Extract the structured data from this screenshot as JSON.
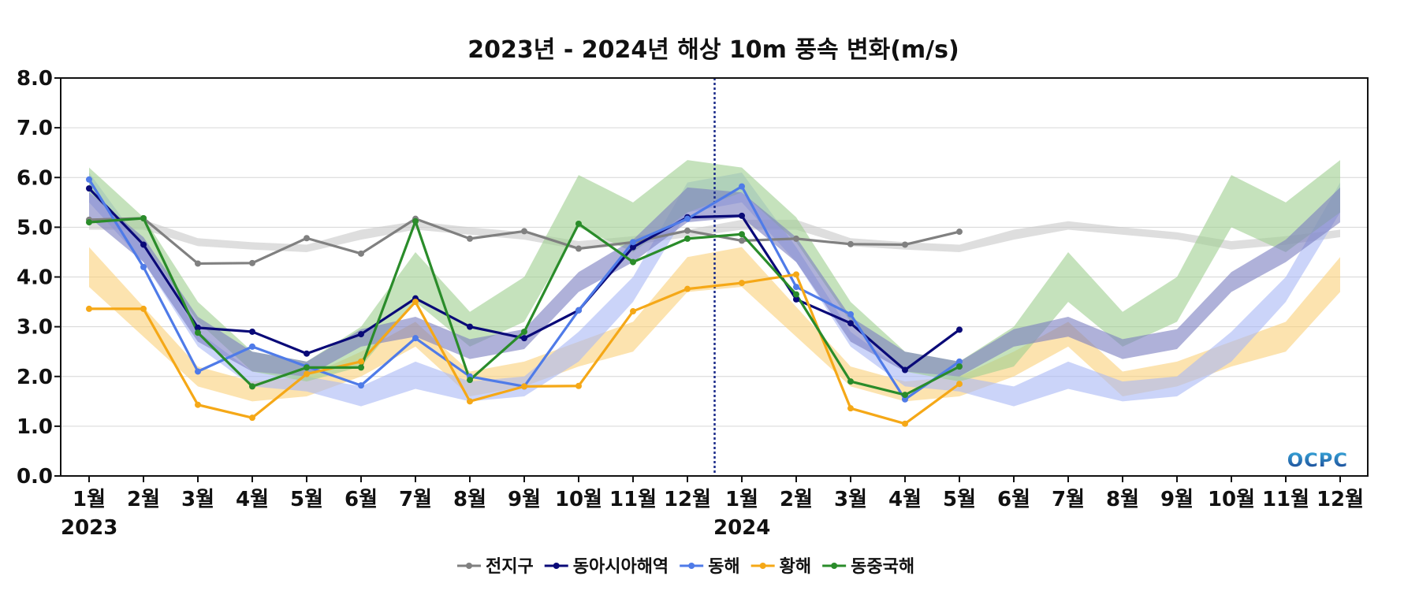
{
  "chart_data": {
    "type": "line",
    "title": "2023년 - 2024년 해상 10m 풍속 변화(m/s)",
    "xlabel": "",
    "ylabel": "",
    "ylim": [
      0,
      8
    ],
    "yticks": [
      "0.0",
      "1.0",
      "2.0",
      "3.0",
      "4.0",
      "5.0",
      "6.0",
      "7.0",
      "8.0"
    ],
    "categories": [
      "1월",
      "2월",
      "3월",
      "4월",
      "5월",
      "6월",
      "7월",
      "8월",
      "9월",
      "10월",
      "11월",
      "12월",
      "1월",
      "2월",
      "3월",
      "4월",
      "5월",
      "6월",
      "7월",
      "8월",
      "9월",
      "10월",
      "11월",
      "12월"
    ],
    "year_labels": [
      {
        "index": 0,
        "label": "2023"
      },
      {
        "index": 12,
        "label": "2024"
      }
    ],
    "divider_between": [
      11,
      12
    ],
    "grid": "horizontal",
    "legend_position": "bottom",
    "bands": [
      {
        "name": "전지구",
        "color": "#c8c8c8",
        "lower": [
          4.95,
          4.95,
          4.62,
          4.55,
          4.5,
          4.75,
          4.95,
          4.85,
          4.75,
          4.55,
          4.65,
          4.8,
          4.95,
          4.95,
          4.62,
          4.55,
          4.5,
          4.75,
          4.95,
          4.85,
          4.75,
          4.55,
          4.65,
          4.8
        ],
        "upper": [
          5.15,
          5.15,
          4.78,
          4.7,
          4.65,
          4.95,
          5.12,
          5.0,
          4.9,
          4.72,
          4.82,
          4.95,
          5.15,
          5.15,
          4.78,
          4.7,
          4.65,
          4.95,
          5.12,
          5.0,
          4.9,
          4.72,
          4.82,
          4.95
        ]
      },
      {
        "name": "황해",
        "color": "#fad17a",
        "lower": [
          3.8,
          2.8,
          1.8,
          1.5,
          1.6,
          2.0,
          2.6,
          1.6,
          1.8,
          2.2,
          2.5,
          3.7,
          3.8,
          2.8,
          1.8,
          1.5,
          1.6,
          2.0,
          2.6,
          1.6,
          1.8,
          2.2,
          2.5,
          3.7
        ],
        "upper": [
          4.6,
          3.4,
          2.2,
          1.9,
          2.0,
          2.5,
          3.1,
          2.1,
          2.3,
          2.7,
          3.1,
          4.4,
          4.6,
          3.4,
          2.2,
          1.9,
          2.0,
          2.5,
          3.1,
          2.1,
          2.3,
          2.7,
          3.1,
          4.4
        ]
      },
      {
        "name": "동해",
        "color": "#a8b8f5",
        "lower": [
          5.5,
          4.3,
          2.6,
          1.8,
          1.7,
          1.4,
          1.75,
          1.5,
          1.6,
          2.3,
          3.5,
          5.3,
          5.5,
          4.3,
          2.6,
          1.8,
          1.7,
          1.4,
          1.75,
          1.5,
          1.6,
          2.3,
          3.5,
          5.3
        ],
        "upper": [
          6.1,
          4.6,
          2.9,
          2.1,
          2.0,
          1.8,
          2.3,
          1.9,
          2.0,
          2.9,
          4.0,
          5.9,
          6.1,
          4.6,
          2.9,
          2.1,
          2.0,
          1.8,
          2.3,
          1.9,
          2.0,
          2.9,
          4.0,
          5.9
        ]
      },
      {
        "name": "동중국해",
        "color": "#9fcf8f",
        "lower": [
          5.7,
          4.7,
          3.1,
          2.1,
          1.9,
          2.2,
          3.5,
          2.6,
          3.1,
          5.0,
          4.5,
          5.3,
          5.7,
          4.7,
          3.1,
          2.1,
          1.9,
          2.2,
          3.5,
          2.6,
          3.1,
          5.0,
          4.5,
          5.3
        ],
        "upper": [
          6.2,
          5.2,
          3.5,
          2.5,
          2.3,
          3.0,
          4.5,
          3.3,
          4.0,
          6.05,
          5.5,
          6.35,
          6.2,
          5.2,
          3.5,
          2.5,
          2.3,
          3.0,
          4.5,
          3.3,
          4.0,
          6.05,
          5.5,
          6.35
        ]
      },
      {
        "name": "동아시아해역",
        "color": "#7a7dbf",
        "lower": [
          5.2,
          4.3,
          2.7,
          2.1,
          2.0,
          2.6,
          2.8,
          2.35,
          2.55,
          3.7,
          4.3,
          5.1,
          5.2,
          4.3,
          2.7,
          2.1,
          2.0,
          2.6,
          2.8,
          2.35,
          2.55,
          3.7,
          4.3,
          5.1
        ],
        "upper": [
          5.7,
          4.8,
          3.2,
          2.5,
          2.3,
          2.95,
          3.2,
          2.75,
          2.95,
          4.1,
          4.75,
          5.8,
          5.7,
          4.8,
          3.2,
          2.5,
          2.3,
          2.95,
          3.2,
          2.75,
          2.95,
          4.1,
          4.75,
          5.8
        ]
      }
    ],
    "series": [
      {
        "name": "전지구",
        "color": "#808080",
        "values": [
          5.15,
          5.18,
          4.27,
          4.28,
          4.78,
          4.47,
          5.17,
          4.77,
          4.92,
          4.57,
          4.7,
          4.93,
          4.73,
          4.77,
          4.66,
          4.65,
          4.91,
          null,
          null,
          null,
          null,
          null,
          null,
          null
        ]
      },
      {
        "name": "동아시아해역",
        "color": "#0a0a78",
        "values": [
          5.78,
          4.65,
          2.98,
          2.9,
          2.46,
          2.85,
          3.57,
          3.0,
          2.77,
          3.33,
          4.6,
          5.2,
          5.23,
          3.55,
          3.07,
          2.13,
          2.94,
          null,
          null,
          null,
          null,
          null,
          null,
          null
        ]
      },
      {
        "name": "동해",
        "color": "#4f7be8",
        "values": [
          5.96,
          4.2,
          2.1,
          2.6,
          2.2,
          1.82,
          2.77,
          2.0,
          1.8,
          3.33,
          4.7,
          5.17,
          5.82,
          3.8,
          3.25,
          1.54,
          2.3,
          null,
          null,
          null,
          null,
          null,
          null,
          null
        ]
      },
      {
        "name": "황해",
        "color": "#f5a817",
        "values": [
          3.36,
          3.36,
          1.43,
          1.17,
          2.05,
          2.3,
          3.5,
          1.5,
          1.8,
          1.81,
          3.31,
          3.76,
          3.88,
          4.05,
          1.36,
          1.05,
          1.85,
          null,
          null,
          null,
          null,
          null,
          null,
          null
        ]
      },
      {
        "name": "동중국해",
        "color": "#2a8c2a",
        "values": [
          5.1,
          5.18,
          2.88,
          1.8,
          2.18,
          2.18,
          5.12,
          1.93,
          2.9,
          5.07,
          4.3,
          4.77,
          4.86,
          3.65,
          1.9,
          1.63,
          2.2,
          null,
          null,
          null,
          null,
          null,
          null,
          null
        ]
      }
    ],
    "legend_order": [
      "전지구",
      "동아시아해역",
      "동해",
      "황해",
      "동중국해"
    ]
  },
  "logo": {
    "text": "OCPC",
    "color_top": "#3ab0e0",
    "color_bottom": "#1a3f8f"
  }
}
